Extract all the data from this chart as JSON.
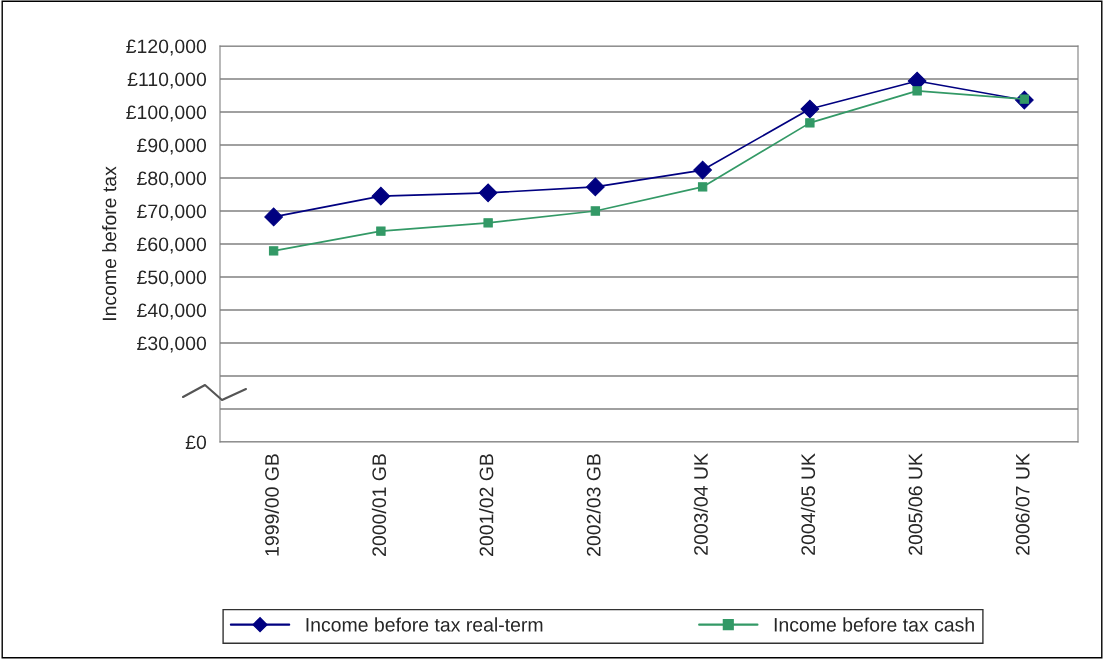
{
  "chart_data": {
    "type": "line",
    "ylabel": "Income before tax",
    "categories": [
      "1999/00 GB",
      "2000/01 GB",
      "2001/02 GB",
      "2002/03 GB",
      "2003/04 UK",
      "2004/05 UK",
      "2005/06 UK",
      "2006/07 UK"
    ],
    "series": [
      {
        "name": "Income before tax real-term",
        "color": "#000080",
        "marker": "diamond",
        "values": [
          68200,
          74500,
          75500,
          77300,
          82400,
          100900,
          109400,
          103600
        ]
      },
      {
        "name": "Income before tax cash",
        "color": "#339966",
        "marker": "square",
        "values": [
          57900,
          63900,
          66400,
          70000,
          77300,
          96700,
          106400,
          103900
        ]
      }
    ],
    "ylim": [
      0,
      120000
    ],
    "yticks": [
      {
        "value": 0,
        "label": "£0"
      },
      {
        "value": 10000,
        "label": null
      },
      {
        "value": 20000,
        "label": null
      },
      {
        "value": 30000,
        "label": "£30,000"
      },
      {
        "value": 40000,
        "label": "£40,000"
      },
      {
        "value": 50000,
        "label": "£50,000"
      },
      {
        "value": 60000,
        "label": "£60,000"
      },
      {
        "value": 70000,
        "label": "£70,000"
      },
      {
        "value": 80000,
        "label": "£80,000"
      },
      {
        "value": 90000,
        "label": "£90,000"
      },
      {
        "value": 100000,
        "label": "£100,000"
      },
      {
        "value": 110000,
        "label": "£110,000"
      },
      {
        "value": 120000,
        "label": "£120,000"
      }
    ],
    "grid": "y",
    "legend": "bottom",
    "line_style": "solid"
  }
}
